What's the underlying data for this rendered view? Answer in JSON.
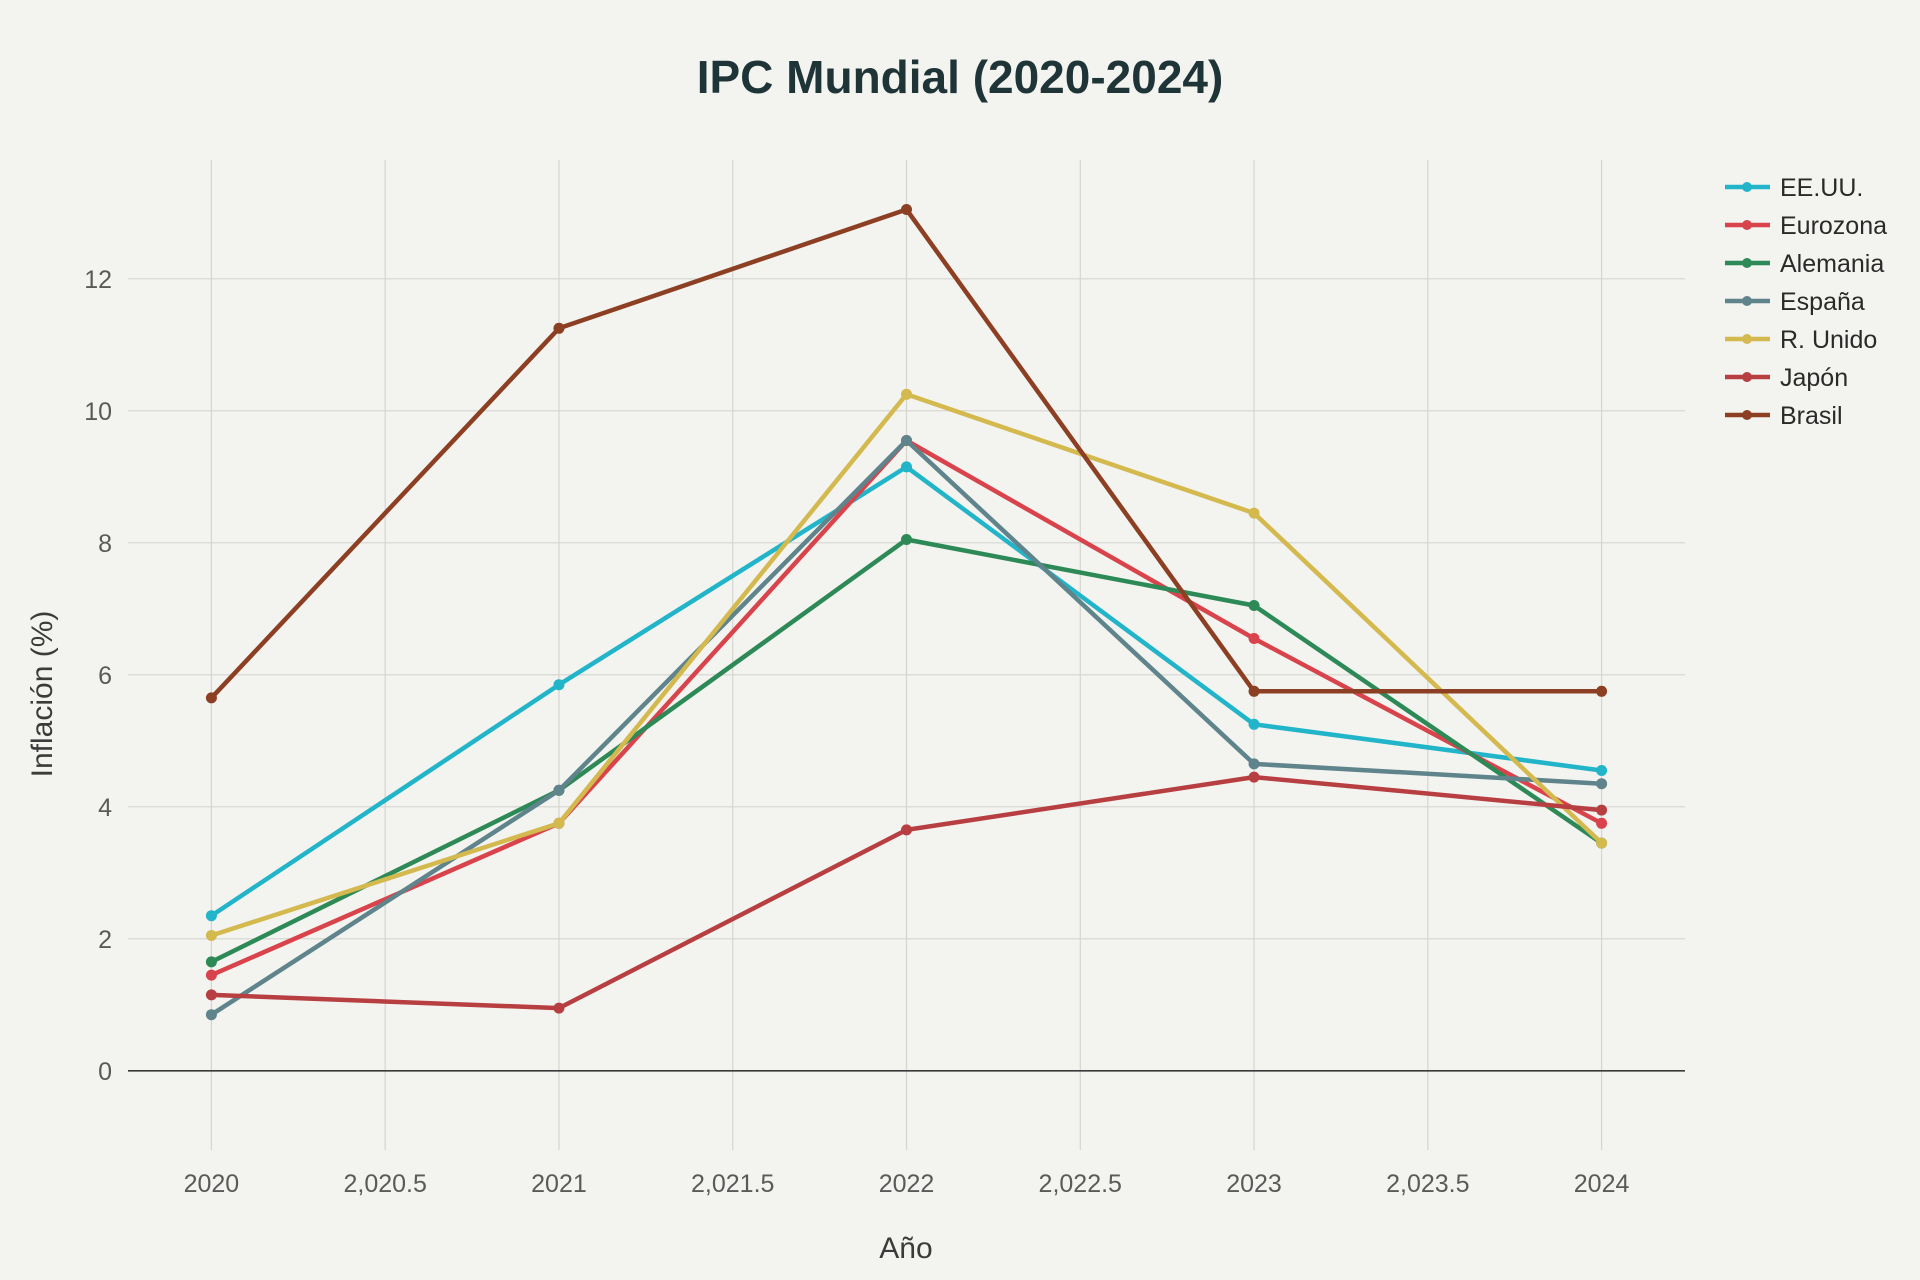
{
  "chart_data": {
    "type": "line",
    "title": "IPC Mundial (2020-2024)",
    "xlabel": "Año",
    "ylabel": "Inflación (%)",
    "x": [
      2020,
      2021,
      2022,
      2023,
      2024
    ],
    "x_ticks": [
      2020,
      2020.5,
      2021,
      2021.5,
      2022,
      2022.5,
      2023,
      2023.5,
      2024
    ],
    "x_tick_labels": [
      "2020",
      "2,020.5",
      "2021",
      "2,021.5",
      "2022",
      "2,022.5",
      "2023",
      "2,023.5",
      "2024"
    ],
    "xlim": [
      2019.76,
      2024.24
    ],
    "y_ticks": [
      0,
      2,
      4,
      6,
      8,
      10,
      12
    ],
    "y_tick_labels": [
      "0",
      "2",
      "4",
      "6",
      "8",
      "10",
      "12"
    ],
    "ylim": [
      -1.2,
      13.8
    ],
    "grid": true,
    "legend_position": "top-right",
    "series": [
      {
        "name": "EE.UU.",
        "color": "#22b5c9",
        "values": [
          2.35,
          5.85,
          9.15,
          5.25,
          4.55
        ]
      },
      {
        "name": "Eurozona",
        "color": "#d9434b",
        "values": [
          1.45,
          3.75,
          9.55,
          6.55,
          3.75
        ]
      },
      {
        "name": "Alemania",
        "color": "#2d8a57",
        "values": [
          1.65,
          4.25,
          8.05,
          7.05,
          3.45
        ]
      },
      {
        "name": "España",
        "color": "#5f848c",
        "values": [
          0.85,
          4.25,
          9.55,
          4.65,
          4.35
        ]
      },
      {
        "name": "R. Unido",
        "color": "#d4b94f",
        "values": [
          2.05,
          3.75,
          10.25,
          8.45,
          3.45
        ]
      },
      {
        "name": "Japón",
        "color": "#b83f41",
        "values": [
          1.15,
          0.95,
          3.65,
          4.45,
          3.95
        ]
      },
      {
        "name": "Brasil",
        "color": "#8c3f22",
        "values": [
          5.65,
          11.25,
          13.05,
          5.75,
          5.75
        ]
      }
    ]
  }
}
